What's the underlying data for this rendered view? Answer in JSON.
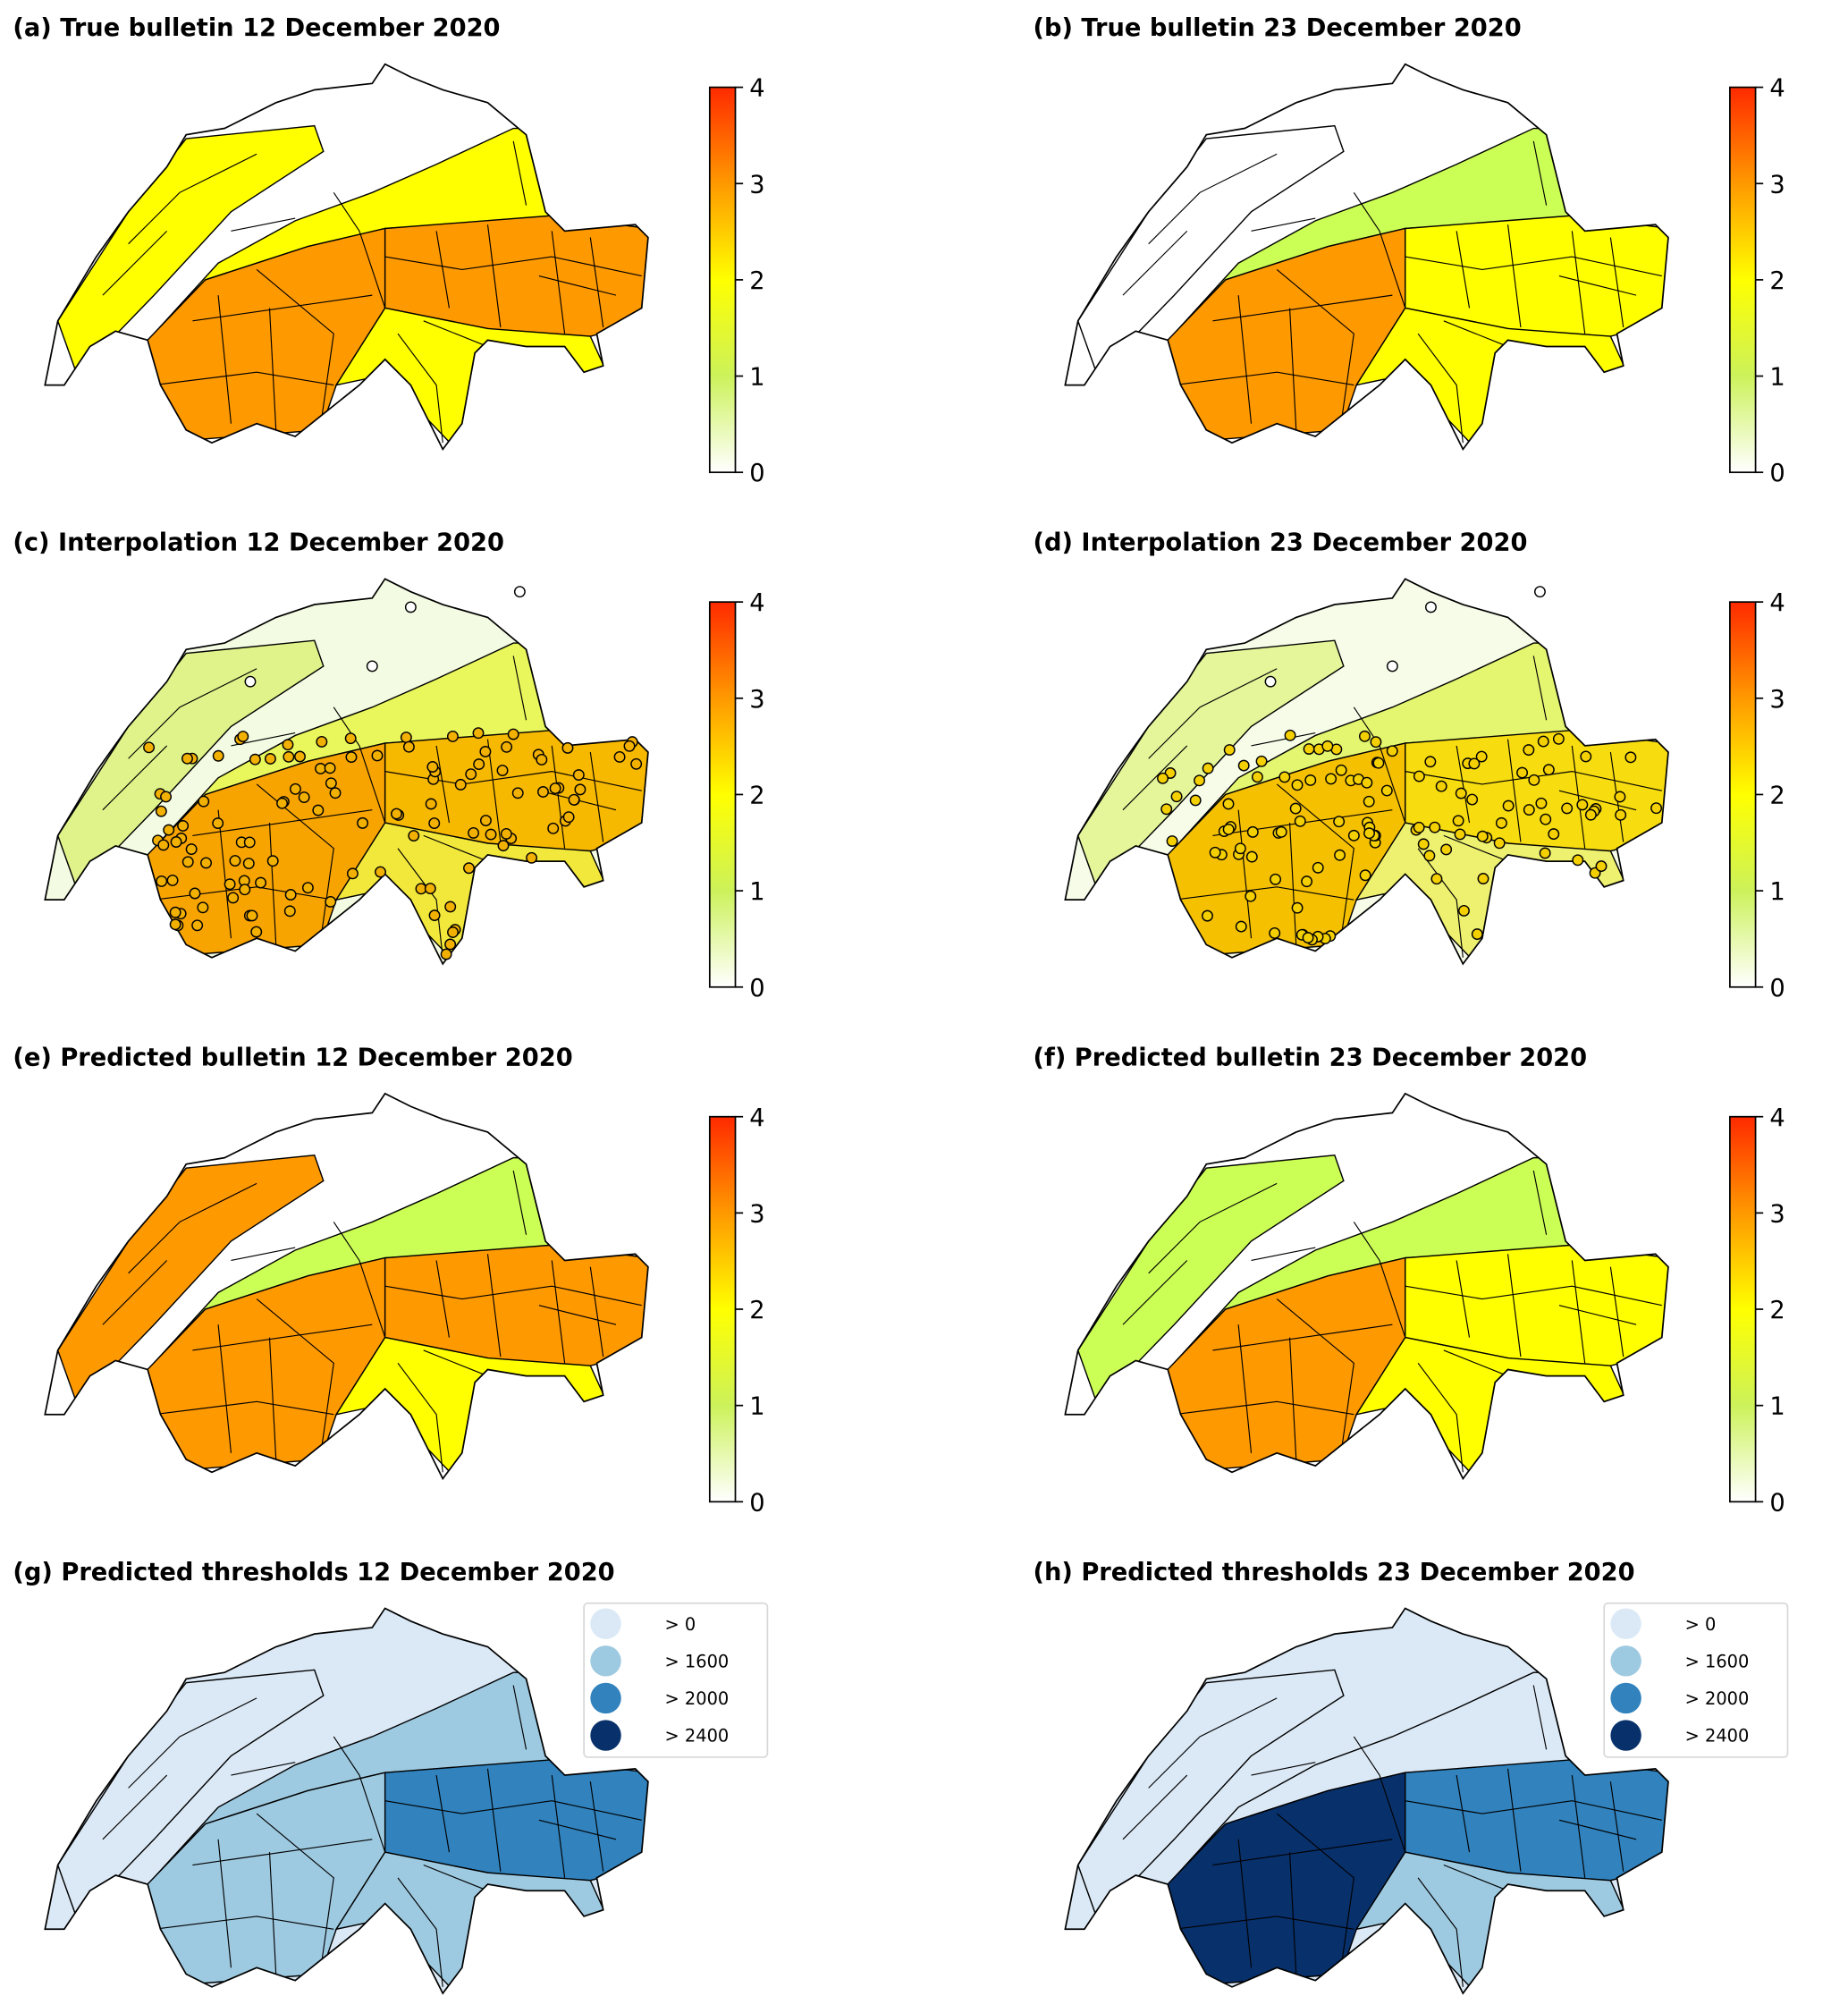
{
  "panels": [
    {
      "id": "a",
      "title": "(a) True bulletin 12 December 2020",
      "kind": "bulletin",
      "zones": {
        "north": "#ffffff",
        "jura": "#ffff00",
        "prealps": "#ffff00",
        "alps_w": "#ff9900",
        "alps_e": "#ff9900",
        "south": "#ffff00"
      }
    },
    {
      "id": "b",
      "title": "(b) True bulletin 23 December 2020",
      "kind": "bulletin",
      "zones": {
        "north": "#ffffff",
        "jura": "#ffffff",
        "prealps": "#ccff55",
        "alps_w": "#ff9900",
        "alps_e": "#ffff00",
        "south": "#ffff00"
      }
    },
    {
      "id": "c",
      "title": "(c) Interpolation 12 December 2020",
      "kind": "interpolation",
      "zones": {
        "north": "#f3fbe2",
        "jura": "#dff38a",
        "prealps": "#e9f75c",
        "alps_w": "#f7a400",
        "alps_e": "#f7b800",
        "south": "#f2e83c"
      },
      "station_color": "#f2b000"
    },
    {
      "id": "d",
      "title": "(d) Interpolation 23 December 2020",
      "kind": "interpolation",
      "zones": {
        "north": "#f6fce8",
        "jura": "#e4f59a",
        "prealps": "#e4f570",
        "alps_w": "#f5c000",
        "alps_e": "#f7dc10",
        "south": "#eef070"
      },
      "station_color": "#f5d000"
    },
    {
      "id": "e",
      "title": "(e) Predicted bulletin 12 December 2020",
      "kind": "bulletin",
      "zones": {
        "north": "#ffffff",
        "jura": "#ff9900",
        "prealps": "#ccff55",
        "alps_w": "#ff9900",
        "alps_e": "#ff9900",
        "south": "#ffff00"
      }
    },
    {
      "id": "f",
      "title": "(f) Predicted bulletin 23 December 2020",
      "kind": "bulletin",
      "zones": {
        "north": "#ffffff",
        "jura": "#ccff55",
        "prealps": "#ccff55",
        "alps_w": "#ff9900",
        "alps_e": "#ffff00",
        "south": "#ffff00"
      }
    },
    {
      "id": "g",
      "title": "(g) Predicted thresholds 12 December 2020",
      "kind": "thresholds",
      "zones": {
        "north": "#dbe9f6",
        "jura": "#dbe9f6",
        "prealps": "#9ecae1",
        "alps_w": "#9ecae1",
        "alps_e": "#3182bd",
        "south": "#9ecae1"
      }
    },
    {
      "id": "h",
      "title": "(h) Predicted thresholds 23 December 2020",
      "kind": "thresholds",
      "zones": {
        "north": "#dbe9f6",
        "jura": "#dbe9f6",
        "prealps": "#dbe9f6",
        "alps_w": "#08306b",
        "alps_e": "#3182bd",
        "south": "#9ecae1"
      }
    }
  ],
  "colorbar": {
    "ticks": [
      "0",
      "1",
      "2",
      "3",
      "4"
    ],
    "range": [
      0,
      4
    ],
    "stops": [
      {
        "v": 0,
        "c": "#ffffff"
      },
      {
        "v": 1,
        "c": "#ccf25a"
      },
      {
        "v": 2,
        "c": "#ffff00"
      },
      {
        "v": 3,
        "c": "#ff9900"
      },
      {
        "v": 4,
        "c": "#ff2a00"
      }
    ]
  },
  "threshold_legend": [
    {
      "label": "> 0",
      "color": "#dbe9f6"
    },
    {
      "label": "> 1600",
      "color": "#9ecae1"
    },
    {
      "label": "> 2000",
      "color": "#3182bd"
    },
    {
      "label": "> 2400",
      "color": "#08306b"
    }
  ]
}
